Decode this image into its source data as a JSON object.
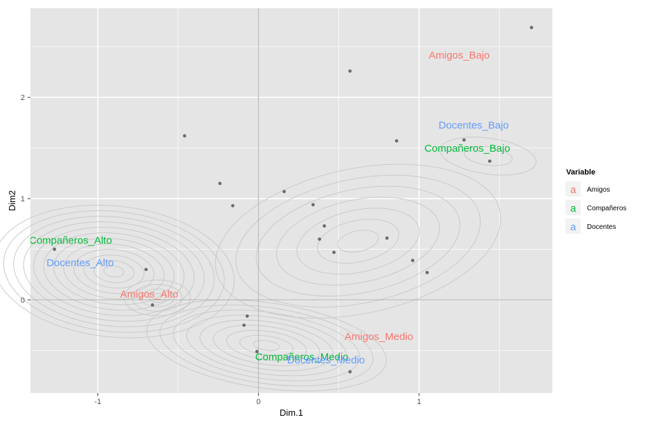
{
  "chart_data": {
    "type": "scatter",
    "xlabel": "Dim.1",
    "ylabel": "Dim2",
    "xlim": [
      -1.42,
      1.83
    ],
    "ylim": [
      -0.92,
      2.88
    ],
    "x_ticks": [
      {
        "value": -1,
        "label": "-1"
      },
      {
        "value": 0,
        "label": "0"
      },
      {
        "value": 1,
        "label": "1"
      }
    ],
    "y_ticks": [
      {
        "value": 0,
        "label": "0"
      },
      {
        "value": 1,
        "label": "1"
      },
      {
        "value": 2,
        "label": "2"
      }
    ],
    "grid": true,
    "points": [
      {
        "x": 1.7,
        "y": 2.69
      },
      {
        "x": 0.57,
        "y": 2.26
      },
      {
        "x": -0.46,
        "y": 1.62
      },
      {
        "x": 0.86,
        "y": 1.57
      },
      {
        "x": 1.28,
        "y": 1.58
      },
      {
        "x": 1.44,
        "y": 1.37
      },
      {
        "x": -0.24,
        "y": 1.15
      },
      {
        "x": -0.16,
        "y": 0.93
      },
      {
        "x": 0.16,
        "y": 1.07
      },
      {
        "x": 0.34,
        "y": 0.94
      },
      {
        "x": 0.41,
        "y": 0.73
      },
      {
        "x": 0.38,
        "y": 0.6
      },
      {
        "x": 0.8,
        "y": 0.61
      },
      {
        "x": 0.47,
        "y": 0.47
      },
      {
        "x": 0.96,
        "y": 0.39
      },
      {
        "x": 1.05,
        "y": 0.27
      },
      {
        "x": -1.27,
        "y": 0.5
      },
      {
        "x": -0.7,
        "y": 0.3
      },
      {
        "x": -0.66,
        "y": -0.05
      },
      {
        "x": -0.07,
        "y": -0.16
      },
      {
        "x": -0.09,
        "y": -0.25
      },
      {
        "x": -0.01,
        "y": -0.51
      },
      {
        "x": 0.57,
        "y": -0.71
      }
    ],
    "labels": [
      {
        "text": "Amigos_Bajo",
        "x": 1.25,
        "y": 2.41,
        "variable": "Amigos"
      },
      {
        "text": "Docentes_Bajo",
        "x": 1.34,
        "y": 1.72,
        "variable": "Docentes"
      },
      {
        "text": "Compañeros_Bajo",
        "x": 1.3,
        "y": 1.49,
        "variable": "Compañeros"
      },
      {
        "text": "Compañeros_Alto",
        "x": -1.17,
        "y": 0.58,
        "variable": "Compañeros"
      },
      {
        "text": "Docentes_Alto",
        "x": -1.11,
        "y": 0.36,
        "variable": "Docentes"
      },
      {
        "text": "Amigos_Alto",
        "x": -0.68,
        "y": 0.05,
        "variable": "Amigos"
      },
      {
        "text": "Amigos_Medio",
        "x": 0.75,
        "y": -0.37,
        "variable": "Amigos"
      },
      {
        "text": "Compañeros_Medio",
        "x": 0.27,
        "y": -0.57,
        "variable": "Compañeros"
      },
      {
        "text": "Docentes_Medio",
        "x": 0.42,
        "y": -0.6,
        "variable": "Docentes"
      }
    ],
    "legend": {
      "title": "Variable",
      "position": "right",
      "key_glyph": "a",
      "entries": [
        {
          "name": "Amigos",
          "color": "#F8766D"
        },
        {
          "name": "Compañeros",
          "color": "#00BA38"
        },
        {
          "name": "Docentes",
          "color": "#619CFF"
        }
      ]
    },
    "colors": {
      "panel_background": "#E5E5E5",
      "gridline": "#FFFFFF",
      "contour": "#C9C9C9",
      "reference_line": "#A6A6A6",
      "point": "#6B6B6B"
    }
  }
}
